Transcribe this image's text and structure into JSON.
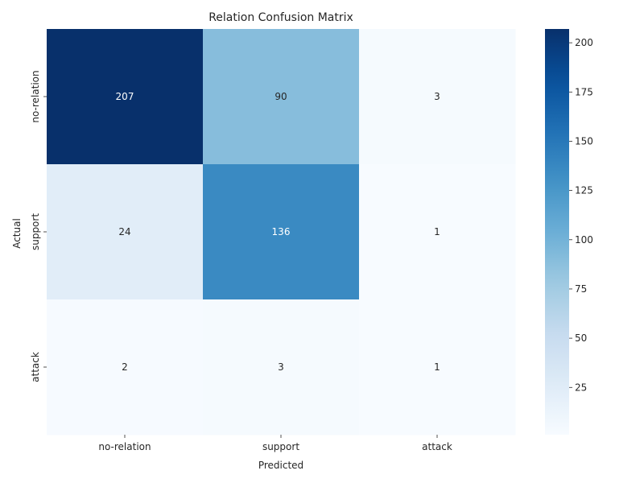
{
  "chart_data": {
    "type": "heatmap",
    "title": "Relation Confusion Matrix",
    "xlabel": "Predicted",
    "ylabel": "Actual",
    "x_categories": [
      "no-relation",
      "support",
      "attack"
    ],
    "y_categories": [
      "no-relation",
      "support",
      "attack"
    ],
    "values": [
      [
        207,
        90,
        3
      ],
      [
        24,
        136,
        1
      ],
      [
        2,
        3,
        1
      ]
    ],
    "colormap": "Blues",
    "color_range": [
      1,
      207
    ],
    "colorbar_ticks": [
      25,
      50,
      75,
      100,
      125,
      150,
      175,
      200
    ],
    "colors": {
      "low": "#f7fbff",
      "high": "#08306b",
      "text_dark": "#262626",
      "text_light": "#ffffff"
    }
  }
}
